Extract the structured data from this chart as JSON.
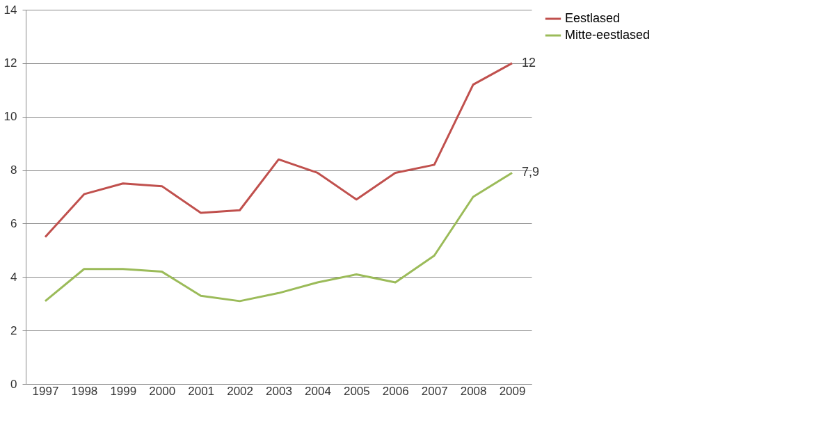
{
  "chart_data": {
    "type": "line",
    "categories": [
      "1997",
      "1998",
      "1999",
      "2000",
      "2001",
      "2002",
      "2003",
      "2004",
      "2005",
      "2006",
      "2007",
      "2008",
      "2009"
    ],
    "series": [
      {
        "name": "Eestlased",
        "color": "#c0504d",
        "values": [
          5.5,
          7.1,
          7.5,
          7.4,
          6.4,
          6.5,
          8.4,
          7.9,
          6.9,
          7.9,
          8.2,
          11.2,
          12
        ]
      },
      {
        "name": "Mitte-eestlased",
        "color": "#9bbb59",
        "values": [
          3.1,
          4.3,
          4.3,
          4.2,
          3.3,
          3.1,
          3.4,
          3.8,
          4.1,
          3.8,
          4.8,
          7.0,
          7.9
        ]
      }
    ],
    "annotations": [
      {
        "text": "12",
        "x": "2009",
        "y": 12
      },
      {
        "text": "7,9",
        "x": "2009",
        "y": 7.9
      }
    ],
    "ylim": [
      0,
      14
    ],
    "yticks": [
      0,
      2,
      4,
      6,
      8,
      10,
      12,
      14
    ],
    "grid": "y",
    "legend": "right",
    "marker": "none",
    "line_style": "solid"
  }
}
